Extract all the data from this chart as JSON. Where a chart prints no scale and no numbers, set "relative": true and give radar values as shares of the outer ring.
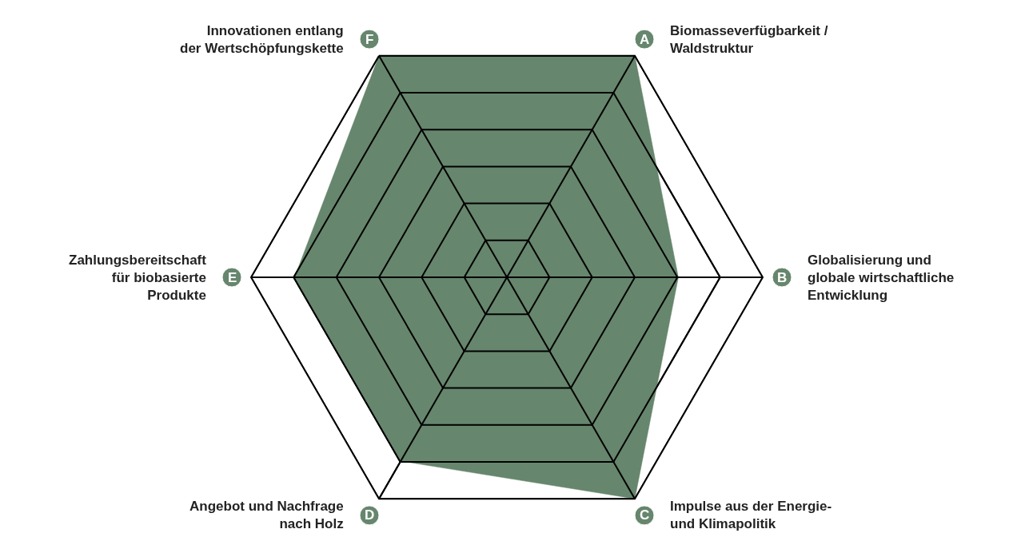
{
  "chart_data": {
    "type": "radar",
    "relative": true,
    "grid": true,
    "categories": [
      "Biomasseverfügbarkeit /\nWaldstruktur",
      "Globalisierung und\nglobale wirtschaftliche\nEntwicklung",
      "Impulse aus der Energie-\nund Klimapolitik",
      "Angebot und Nachfrage\nnach Holz",
      "Zahlungsbereitschaft\nfür biobasierte\nProdukte",
      "Innovationen entlang\nder Wertschöpfungskette"
    ],
    "annotations": [
      "A",
      "B",
      "C",
      "D",
      "E",
      "F"
    ],
    "series": [
      {
        "color": "#66866d",
        "values": [
          1.0,
          0.67,
          1.0,
          0.83,
          0.83,
          1.0
        ]
      }
    ]
  }
}
